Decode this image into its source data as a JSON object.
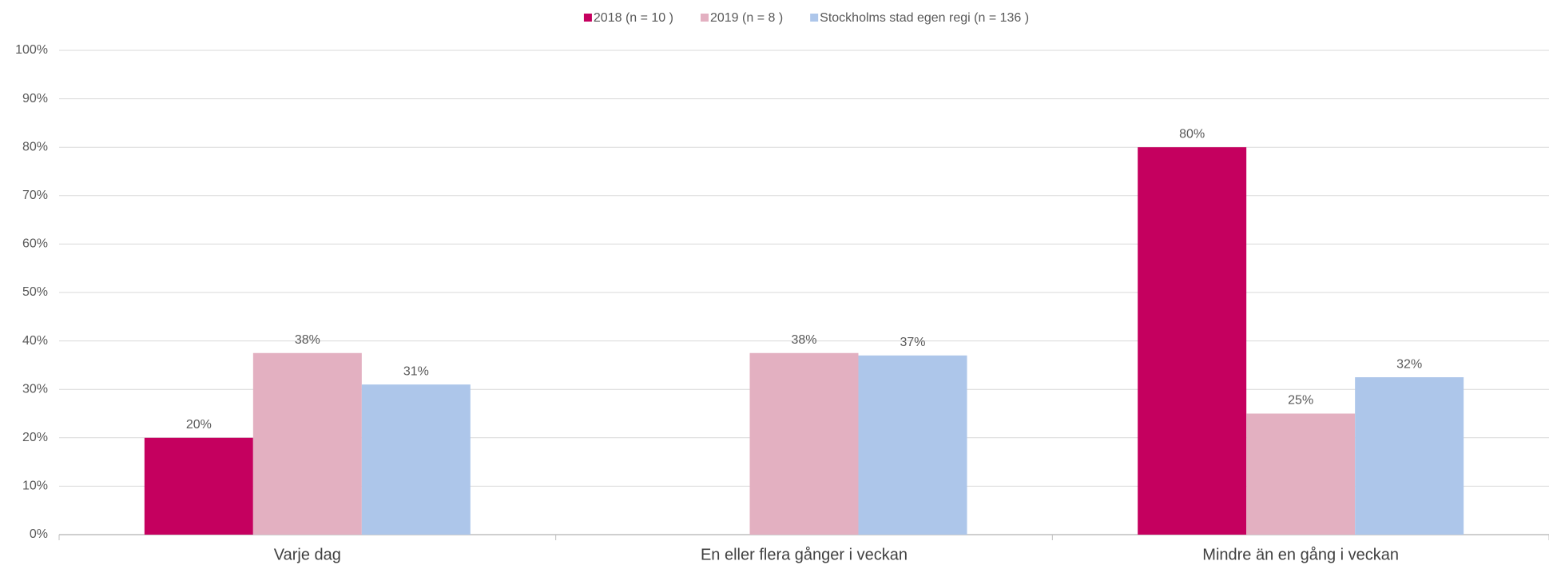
{
  "chart_data": {
    "type": "bar",
    "categories": [
      "Varje dag",
      "En eller flera gånger i veckan",
      "Mindre än en gång i veckan"
    ],
    "series": [
      {
        "name": "2018 (n = 10 )",
        "color": "#c5005f",
        "values": [
          20,
          null,
          80
        ],
        "value_labels": [
          "20%",
          null,
          "80%"
        ]
      },
      {
        "name": "2019 (n = 8 )",
        "color": "#e3b0c1",
        "values": [
          37.5,
          37.5,
          25
        ],
        "value_labels": [
          "38%",
          "38%",
          "25%"
        ]
      },
      {
        "name": "Stockholms stad egen regi (n = 136 )",
        "color": "#adc6ea",
        "values": [
          31,
          37,
          32.5
        ],
        "value_labels": [
          "31%",
          "37%",
          "32%"
        ]
      }
    ],
    "ylim": [
      0,
      100
    ],
    "yticks": [
      {
        "value": 0,
        "label": "0%"
      },
      {
        "value": 10,
        "label": "10%"
      },
      {
        "value": 20,
        "label": "20%"
      },
      {
        "value": 30,
        "label": "30%"
      },
      {
        "value": 40,
        "label": "40%"
      },
      {
        "value": 50,
        "label": "50%"
      },
      {
        "value": 60,
        "label": "60%"
      },
      {
        "value": 70,
        "label": "70%"
      },
      {
        "value": 80,
        "label": "80%"
      },
      {
        "value": 90,
        "label": "90%"
      },
      {
        "value": 100,
        "label": "100%"
      }
    ],
    "grid": true,
    "legend": "top"
  }
}
